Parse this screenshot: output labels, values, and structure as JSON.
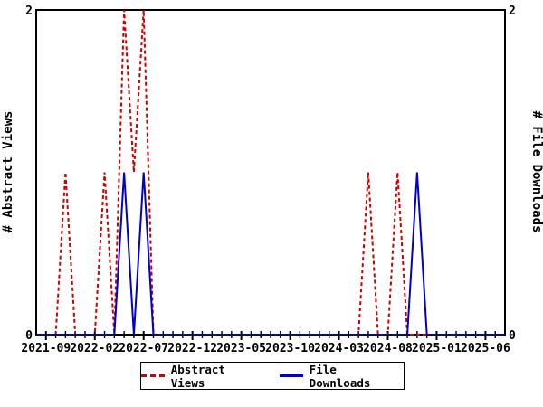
{
  "chart_data": {
    "type": "line",
    "title": "",
    "ylabel_left": "# Abstract Views",
    "ylabel_right": "# File Downloads",
    "ylim": [
      0,
      2
    ],
    "ytick_labels": [
      "0",
      "2"
    ],
    "xtick_labels": [
      "2021-09",
      "2022-02",
      "2022-07",
      "2022-12",
      "2023-05",
      "2023-10",
      "2024-03",
      "2024-08",
      "2025-01",
      "2025-06"
    ],
    "months": [
      "2021-08",
      "2021-09",
      "2021-10",
      "2021-11",
      "2021-12",
      "2022-01",
      "2022-02",
      "2022-03",
      "2022-04",
      "2022-05",
      "2022-06",
      "2022-07",
      "2022-08",
      "2022-09",
      "2022-10",
      "2022-11",
      "2022-12",
      "2023-01",
      "2023-02",
      "2023-03",
      "2023-04",
      "2023-05",
      "2023-06",
      "2023-07",
      "2023-08",
      "2023-09",
      "2023-10",
      "2023-11",
      "2023-12",
      "2024-01",
      "2024-02",
      "2024-03",
      "2024-04",
      "2024-05",
      "2024-06",
      "2024-07",
      "2024-08",
      "2024-09",
      "2024-10",
      "2024-11",
      "2024-12",
      "2025-01",
      "2025-02",
      "2025-03",
      "2025-04",
      "2025-05",
      "2025-06",
      "2025-07",
      "2025-08"
    ],
    "series": [
      {
        "name": "Abstract Views",
        "color": "#cc0000",
        "style": "dashed",
        "values": [
          0,
          0,
          0,
          1,
          0,
          0,
          0,
          1,
          0,
          2,
          1,
          2,
          0,
          0,
          0,
          0,
          0,
          0,
          0,
          0,
          0,
          0,
          0,
          0,
          0,
          0,
          0,
          0,
          0,
          0,
          0,
          0,
          0,
          0,
          1,
          0,
          0,
          1,
          0,
          0,
          0,
          0,
          0,
          0,
          0,
          0,
          0,
          0,
          0
        ]
      },
      {
        "name": "File Downloads",
        "color": "#0000cc",
        "style": "solid",
        "values": [
          0,
          0,
          0,
          0,
          0,
          0,
          0,
          0,
          0,
          1,
          0,
          1,
          0,
          0,
          0,
          0,
          0,
          0,
          0,
          0,
          0,
          0,
          0,
          0,
          0,
          0,
          0,
          0,
          0,
          0,
          0,
          0,
          0,
          0,
          0,
          0,
          0,
          0,
          0,
          1,
          0,
          0,
          0,
          0,
          0,
          0,
          0,
          0,
          0
        ]
      }
    ],
    "grid": false,
    "legend_position": "bottom-center",
    "background": "#ffffff",
    "axis_color": "#000000"
  }
}
